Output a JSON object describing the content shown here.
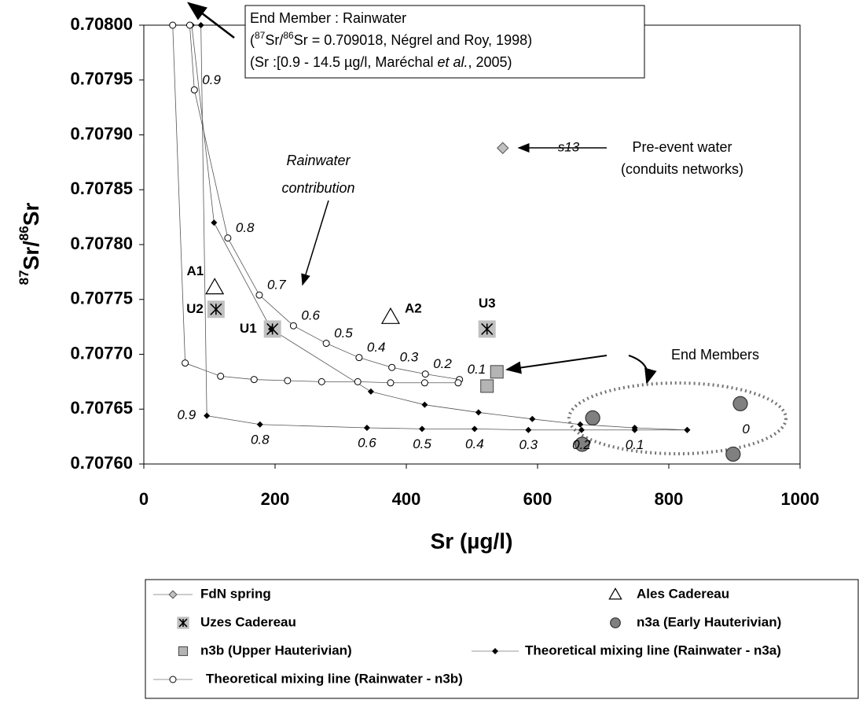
{
  "chart_data": {
    "type": "scatter",
    "x_label": "Sr (µg/l)",
    "y_label": [
      "87",
      "Sr/",
      "86",
      "Sr"
    ],
    "xlim": [
      0,
      1000
    ],
    "xticks": [
      0,
      200,
      400,
      600,
      800,
      1000
    ],
    "ylim": [
      0.7076,
      0.708
    ],
    "yticks": [
      {
        "value": 0.7076,
        "label": "0.70760"
      },
      {
        "value": 0.70765,
        "label": "0.70765"
      },
      {
        "value": 0.7077,
        "label": "0.70770"
      },
      {
        "value": 0.70775,
        "label": "0.70775"
      },
      {
        "value": 0.7078,
        "label": "0.70780"
      },
      {
        "value": 0.70785,
        "label": "0.70785"
      },
      {
        "value": 0.7079,
        "label": "0.70790"
      },
      {
        "value": 0.70795,
        "label": "0.70795"
      },
      {
        "value": 0.708,
        "label": "0.70800"
      }
    ],
    "series": [
      {
        "name": "FdN spring",
        "marker": "diamond",
        "color": "#c0c0c0",
        "line": true,
        "x": [
          547
        ],
        "values": [
          0.707888
        ],
        "point_labels": [
          "s13"
        ]
      },
      {
        "name": "Ales Cadereau",
        "marker": "triangle",
        "color": "#ffffff",
        "x": [
          108,
          376
        ],
        "values": [
          0.707761,
          0.707734
        ],
        "point_labels": [
          "A1",
          "A2"
        ]
      },
      {
        "name": "Uzes Cadereau",
        "marker": "asterisk-square",
        "color": "#c0c0c0",
        "x": [
          110,
          196,
          523
        ],
        "values": [
          0.707741,
          0.707723,
          0.707723
        ],
        "point_labels": [
          "U2",
          "U1",
          "U3"
        ]
      },
      {
        "name": "n3a (Early Hauterivian)",
        "marker": "circle",
        "color": "#808080",
        "x": [
          909,
          684,
          668,
          898
        ],
        "values": [
          0.707655,
          0.707642,
          0.707618,
          0.707609
        ]
      },
      {
        "name": "n3b (Upper Hauterivian)",
        "marker": "square",
        "color": "#b4b4b4",
        "x": [
          523,
          538
        ],
        "values": [
          0.707671,
          0.707684
        ]
      },
      {
        "name": "Theoretical mixing line (Rainwater - n3a)",
        "marker": "small-diamond",
        "color": "#000000",
        "line": true,
        "x": [
          73,
          107,
          194,
          346,
          428,
          510,
          592,
          665,
          748,
          828,
          null,
          87,
          96,
          177,
          340,
          424,
          504,
          586,
          667,
          748,
          828
        ],
        "values": [
          0.708,
          0.70782,
          0.707723,
          0.707666,
          0.707654,
          0.707647,
          0.707641,
          0.707636,
          0.707633,
          0.707631,
          null,
          0.708,
          0.707644,
          0.707636,
          0.707633,
          0.707632,
          0.707632,
          0.707631,
          0.707631,
          0.707631,
          0.707631
        ],
        "point_labels": [
          null,
          null,
          null,
          null,
          null,
          null,
          null,
          null,
          null,
          null,
          null,
          null,
          "0.9",
          "0.8",
          "0.6",
          "0.5",
          "0.4",
          "0.3",
          "0.2",
          "0.1",
          "0"
        ]
      },
      {
        "name": "Theoretical mixing line (Rainwater - n3b)",
        "marker": "open-circle",
        "color": "#ffffff",
        "line": true,
        "x": [
          70,
          77,
          128,
          176,
          228,
          278,
          328,
          378,
          429,
          481,
          null,
          44,
          63,
          117,
          168,
          219,
          271,
          326,
          376,
          428,
          479
        ],
        "values": [
          0.708,
          0.707941,
          0.707806,
          0.707754,
          0.707726,
          0.70771,
          0.707697,
          0.707688,
          0.707682,
          0.707677,
          null,
          0.708,
          0.707692,
          0.70768,
          0.707677,
          0.707676,
          0.707675,
          0.707675,
          0.707674,
          0.707674,
          0.707674
        ],
        "point_labels": [
          null,
          "0.9",
          "0.8",
          "0.7",
          "0.6",
          "0.5",
          "0.4",
          "0.3",
          "0.2",
          "0.1",
          null,
          null,
          null,
          null,
          null,
          null,
          null,
          null,
          null,
          null,
          null
        ]
      }
    ],
    "annotations": {
      "box": [
        [
          "End Member : Rainwater"
        ],
        [
          "(",
          "87",
          "Sr/",
          "86",
          "Sr = 0.709018, Négrel and Roy, 1998)"
        ],
        [
          "(Sr :[0.9 - 14.5 µg/l, Maréchal ",
          "et al.",
          ", 2005)"
        ]
      ],
      "rainwater": [
        "Rainwater",
        "contribution"
      ],
      "pre_event": [
        "Pre-event water",
        "(conduits networks)"
      ],
      "end_members": "End Members"
    }
  }
}
